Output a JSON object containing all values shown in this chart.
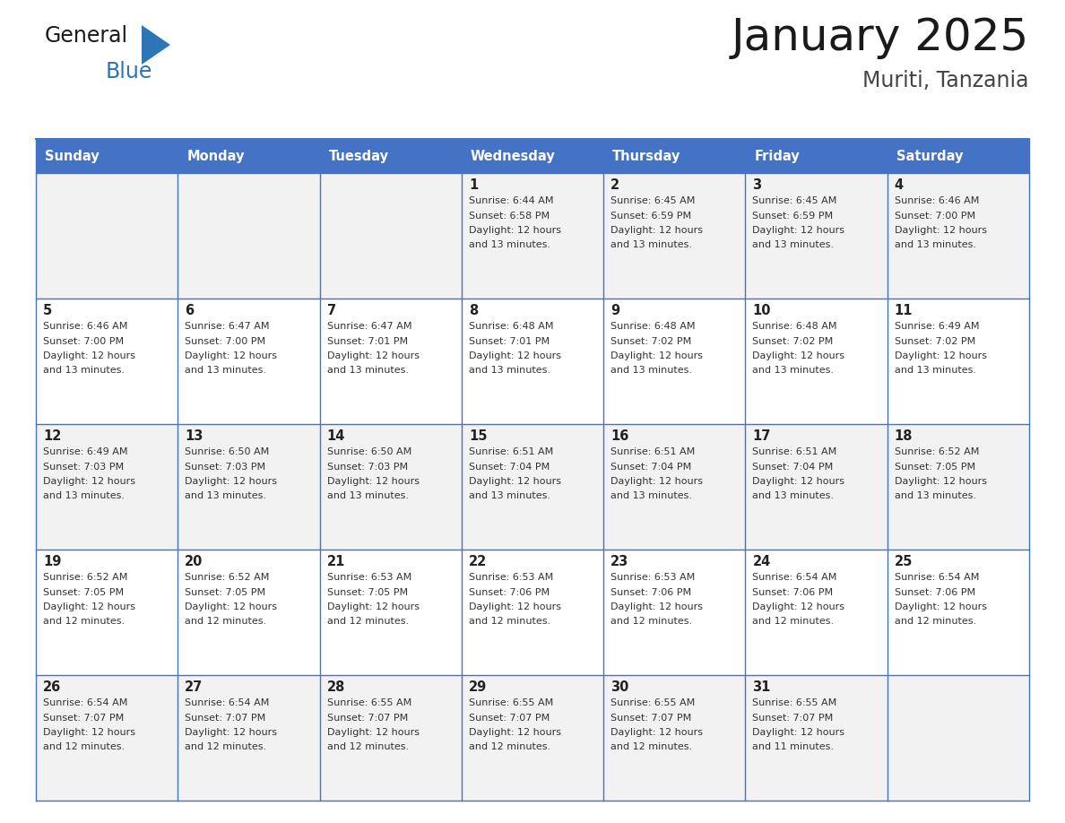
{
  "title": "January 2025",
  "subtitle": "Muriti, Tanzania",
  "days_of_week": [
    "Sunday",
    "Monday",
    "Tuesday",
    "Wednesday",
    "Thursday",
    "Friday",
    "Saturday"
  ],
  "header_bg_color": "#4472C4",
  "header_text_color": "#FFFFFF",
  "cell_bg_row0": "#F2F2F2",
  "cell_bg_row1": "#FFFFFF",
  "cell_bg_row2": "#F2F2F2",
  "cell_bg_row3": "#FFFFFF",
  "cell_bg_row4": "#F2F2F2",
  "cell_border_color": "#4472C4",
  "day_number_color": "#222222",
  "cell_text_color": "#333333",
  "title_color": "#1a1a1a",
  "subtitle_color": "#444444",
  "logo_general_color": "#1a1a1a",
  "logo_blue_color": "#2E75B6",
  "weeks": [
    {
      "days": [
        {
          "date": null,
          "sunrise": null,
          "sunset": null,
          "daylight": null
        },
        {
          "date": null,
          "sunrise": null,
          "sunset": null,
          "daylight": null
        },
        {
          "date": null,
          "sunrise": null,
          "sunset": null,
          "daylight": null
        },
        {
          "date": 1,
          "sunrise": "6:44 AM",
          "sunset": "6:58 PM",
          "daylight": "12 hours and 13 minutes."
        },
        {
          "date": 2,
          "sunrise": "6:45 AM",
          "sunset": "6:59 PM",
          "daylight": "12 hours and 13 minutes."
        },
        {
          "date": 3,
          "sunrise": "6:45 AM",
          "sunset": "6:59 PM",
          "daylight": "12 hours and 13 minutes."
        },
        {
          "date": 4,
          "sunrise": "6:46 AM",
          "sunset": "7:00 PM",
          "daylight": "12 hours and 13 minutes."
        }
      ]
    },
    {
      "days": [
        {
          "date": 5,
          "sunrise": "6:46 AM",
          "sunset": "7:00 PM",
          "daylight": "12 hours and 13 minutes."
        },
        {
          "date": 6,
          "sunrise": "6:47 AM",
          "sunset": "7:00 PM",
          "daylight": "12 hours and 13 minutes."
        },
        {
          "date": 7,
          "sunrise": "6:47 AM",
          "sunset": "7:01 PM",
          "daylight": "12 hours and 13 minutes."
        },
        {
          "date": 8,
          "sunrise": "6:48 AM",
          "sunset": "7:01 PM",
          "daylight": "12 hours and 13 minutes."
        },
        {
          "date": 9,
          "sunrise": "6:48 AM",
          "sunset": "7:02 PM",
          "daylight": "12 hours and 13 minutes."
        },
        {
          "date": 10,
          "sunrise": "6:48 AM",
          "sunset": "7:02 PM",
          "daylight": "12 hours and 13 minutes."
        },
        {
          "date": 11,
          "sunrise": "6:49 AM",
          "sunset": "7:02 PM",
          "daylight": "12 hours and 13 minutes."
        }
      ]
    },
    {
      "days": [
        {
          "date": 12,
          "sunrise": "6:49 AM",
          "sunset": "7:03 PM",
          "daylight": "12 hours and 13 minutes."
        },
        {
          "date": 13,
          "sunrise": "6:50 AM",
          "sunset": "7:03 PM",
          "daylight": "12 hours and 13 minutes."
        },
        {
          "date": 14,
          "sunrise": "6:50 AM",
          "sunset": "7:03 PM",
          "daylight": "12 hours and 13 minutes."
        },
        {
          "date": 15,
          "sunrise": "6:51 AM",
          "sunset": "7:04 PM",
          "daylight": "12 hours and 13 minutes."
        },
        {
          "date": 16,
          "sunrise": "6:51 AM",
          "sunset": "7:04 PM",
          "daylight": "12 hours and 13 minutes."
        },
        {
          "date": 17,
          "sunrise": "6:51 AM",
          "sunset": "7:04 PM",
          "daylight": "12 hours and 13 minutes."
        },
        {
          "date": 18,
          "sunrise": "6:52 AM",
          "sunset": "7:05 PM",
          "daylight": "12 hours and 13 minutes."
        }
      ]
    },
    {
      "days": [
        {
          "date": 19,
          "sunrise": "6:52 AM",
          "sunset": "7:05 PM",
          "daylight": "12 hours and 12 minutes."
        },
        {
          "date": 20,
          "sunrise": "6:52 AM",
          "sunset": "7:05 PM",
          "daylight": "12 hours and 12 minutes."
        },
        {
          "date": 21,
          "sunrise": "6:53 AM",
          "sunset": "7:05 PM",
          "daylight": "12 hours and 12 minutes."
        },
        {
          "date": 22,
          "sunrise": "6:53 AM",
          "sunset": "7:06 PM",
          "daylight": "12 hours and 12 minutes."
        },
        {
          "date": 23,
          "sunrise": "6:53 AM",
          "sunset": "7:06 PM",
          "daylight": "12 hours and 12 minutes."
        },
        {
          "date": 24,
          "sunrise": "6:54 AM",
          "sunset": "7:06 PM",
          "daylight": "12 hours and 12 minutes."
        },
        {
          "date": 25,
          "sunrise": "6:54 AM",
          "sunset": "7:06 PM",
          "daylight": "12 hours and 12 minutes."
        }
      ]
    },
    {
      "days": [
        {
          "date": 26,
          "sunrise": "6:54 AM",
          "sunset": "7:07 PM",
          "daylight": "12 hours and 12 minutes."
        },
        {
          "date": 27,
          "sunrise": "6:54 AM",
          "sunset": "7:07 PM",
          "daylight": "12 hours and 12 minutes."
        },
        {
          "date": 28,
          "sunrise": "6:55 AM",
          "sunset": "7:07 PM",
          "daylight": "12 hours and 12 minutes."
        },
        {
          "date": 29,
          "sunrise": "6:55 AM",
          "sunset": "7:07 PM",
          "daylight": "12 hours and 12 minutes."
        },
        {
          "date": 30,
          "sunrise": "6:55 AM",
          "sunset": "7:07 PM",
          "daylight": "12 hours and 12 minutes."
        },
        {
          "date": 31,
          "sunrise": "6:55 AM",
          "sunset": "7:07 PM",
          "daylight": "12 hours and 11 minutes."
        },
        {
          "date": null,
          "sunrise": null,
          "sunset": null,
          "daylight": null
        }
      ]
    }
  ],
  "row_bg_colors": [
    "#F2F2F2",
    "#FFFFFF",
    "#F2F2F2",
    "#FFFFFF",
    "#F2F2F2"
  ]
}
